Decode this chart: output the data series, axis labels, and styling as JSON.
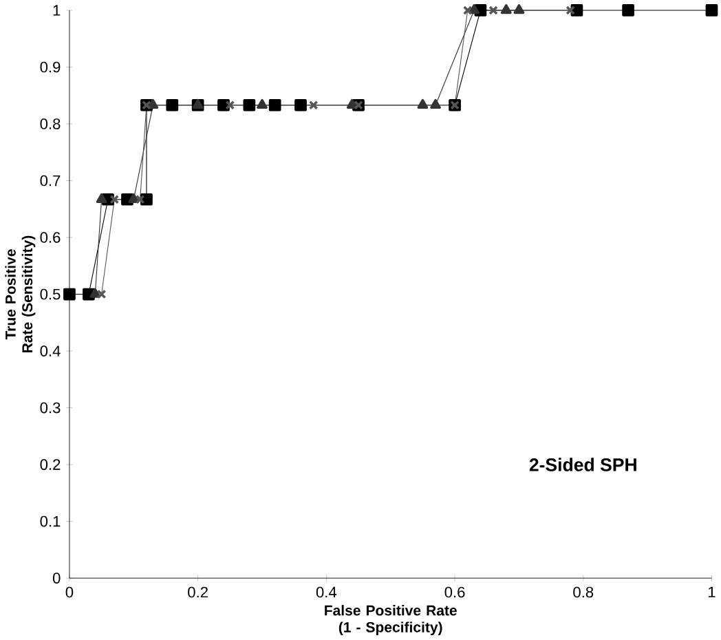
{
  "chart_data": {
    "type": "line",
    "xlabel": "False Positive Rate (1 - Specificity)",
    "ylabel": "True Positive Rate (Sensitivity)",
    "annotations": [
      "2-Sided SPH"
    ],
    "xlim": [
      0,
      1
    ],
    "ylim": [
      0,
      1
    ],
    "xticks": [
      0,
      0.2,
      0.4,
      0.6,
      0.8,
      1
    ],
    "yticks": [
      0,
      0.1,
      0.2,
      0.3,
      0.4,
      0.5,
      0.6,
      0.7,
      0.8,
      0.9,
      1
    ],
    "grid": false,
    "line_style": "solid",
    "series": [
      {
        "color": "#000000",
        "marker": "square",
        "x": [
          0,
          0.03,
          0.06,
          0.09,
          0.12,
          0.12,
          0.16,
          0.2,
          0.24,
          0.28,
          0.32,
          0.36,
          0.45,
          0.6,
          0.64,
          0.79,
          0.87,
          1
        ],
        "values": [
          0.5,
          0.5,
          0.667,
          0.667,
          0.667,
          0.833,
          0.833,
          0.833,
          0.833,
          0.833,
          0.833,
          0.833,
          0.833,
          0.833,
          1,
          1,
          1,
          1
        ]
      },
      {
        "color": "#333333",
        "marker": "triangle",
        "x": [
          0.04,
          0.05,
          0.1,
          0.13,
          0.2,
          0.3,
          0.44,
          0.55,
          0.57,
          0.63,
          0.68,
          0.7
        ],
        "values": [
          0.5,
          0.667,
          0.667,
          0.833,
          0.833,
          0.833,
          0.833,
          0.833,
          0.833,
          1,
          1,
          1
        ]
      },
      {
        "color": "#555555",
        "marker": "cross",
        "x": [
          0.05,
          0.07,
          0.11,
          0.12,
          0.25,
          0.38,
          0.45,
          0.6,
          0.62,
          0.66,
          0.78
        ],
        "values": [
          0.5,
          0.667,
          0.667,
          0.833,
          0.833,
          0.833,
          0.833,
          0.833,
          1,
          1,
          1
        ]
      }
    ]
  }
}
